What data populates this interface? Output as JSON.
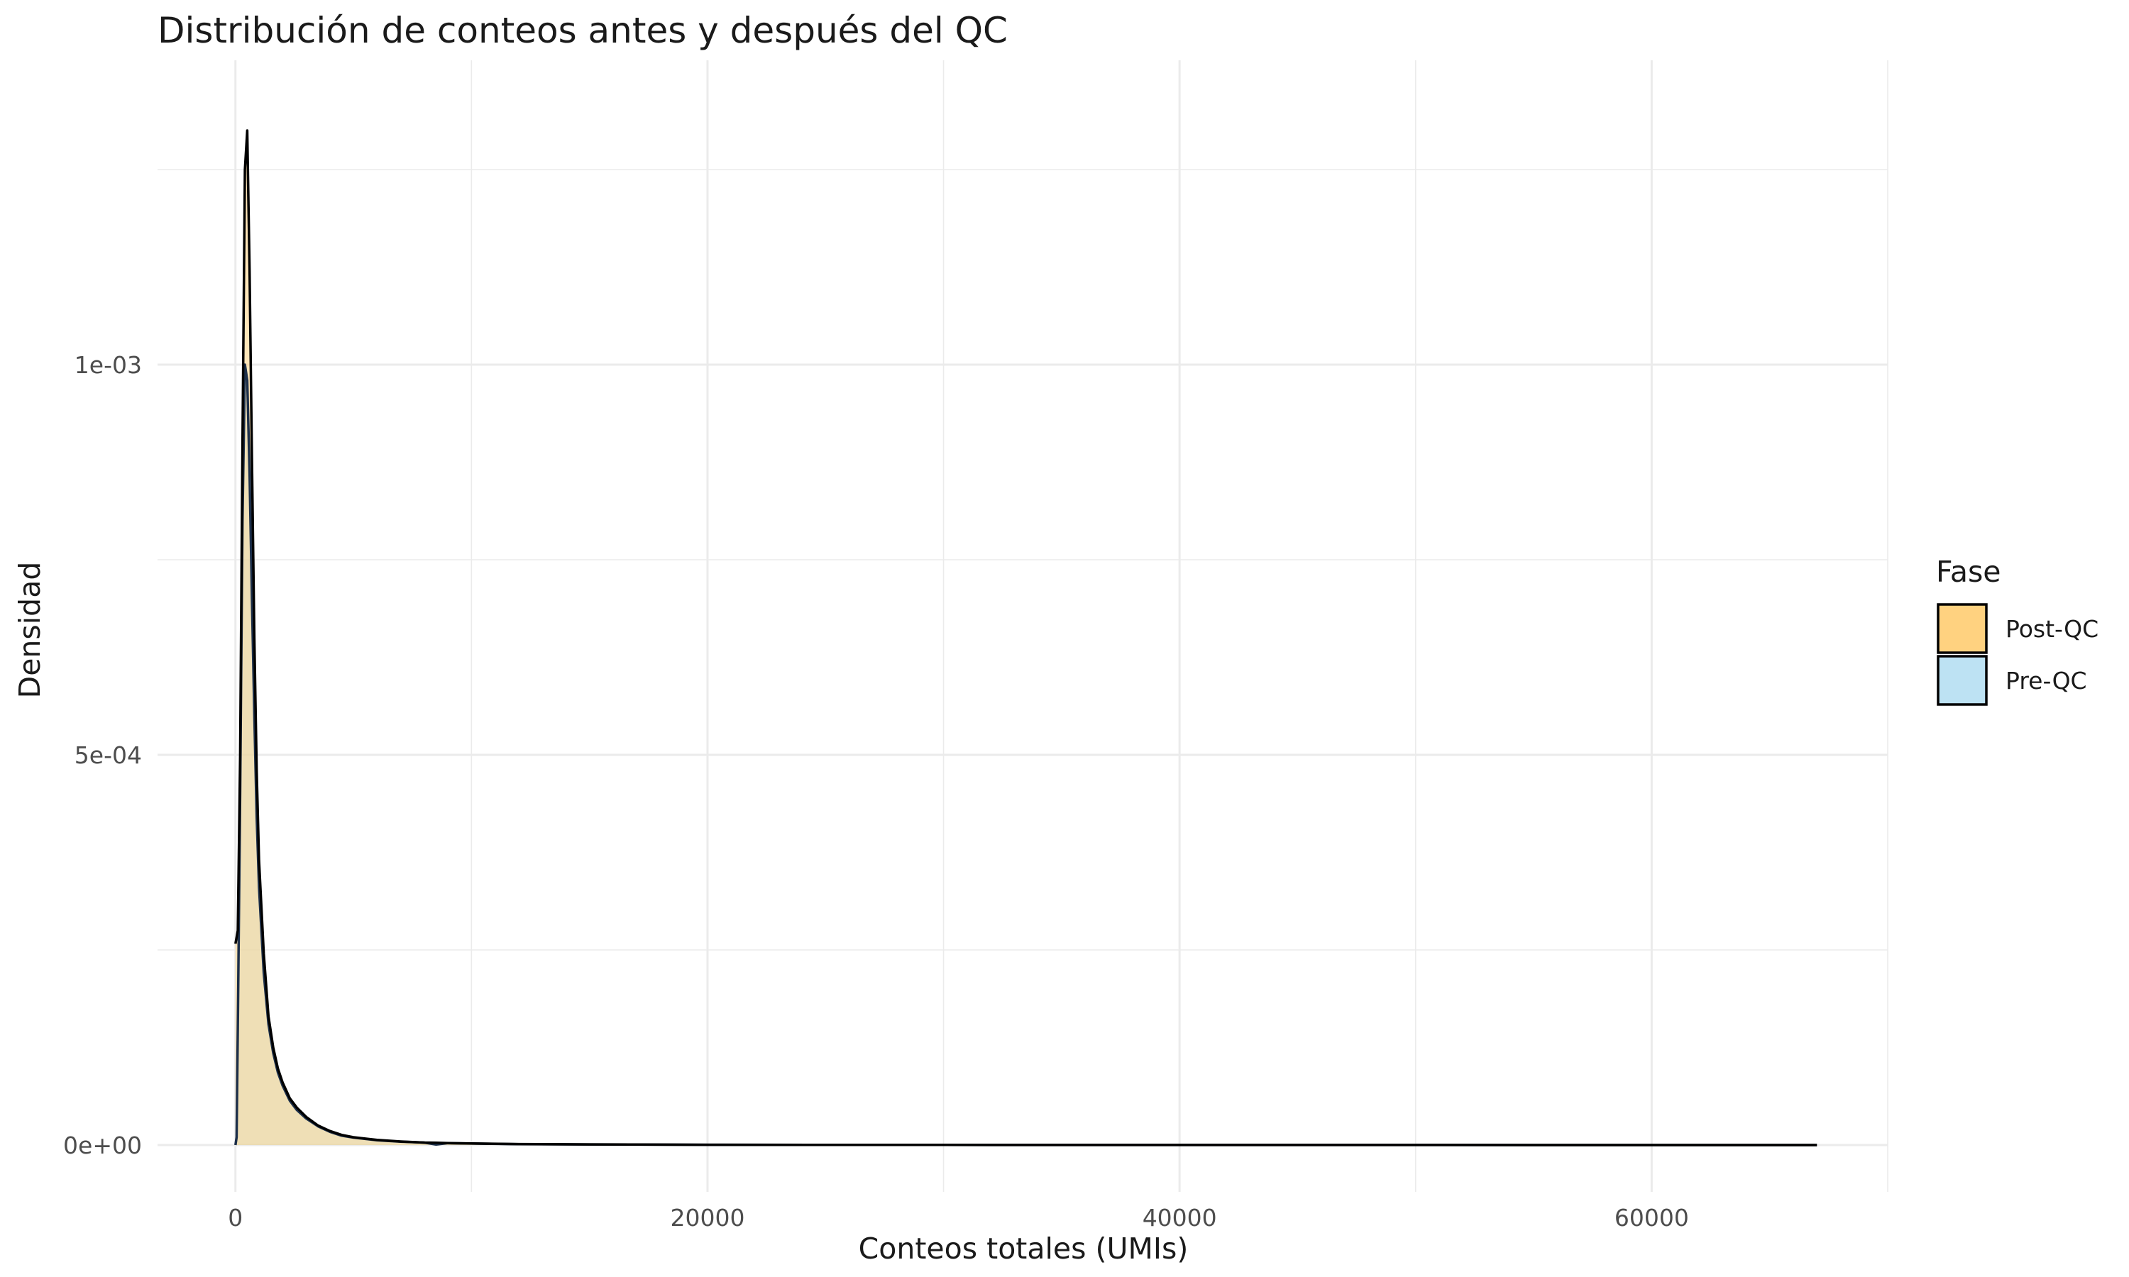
{
  "chart_data": {
    "type": "area",
    "title": "Distribución de conteos antes y después del QC",
    "xlabel": "Conteos totales (UMIs)",
    "ylabel": "Densidad",
    "xlim": [
      -3300,
      70000
    ],
    "ylim": [
      -6e-05,
      0.00139
    ],
    "x_ticks": [
      0,
      20000,
      40000,
      60000
    ],
    "x_tick_labels": [
      "0",
      "20000",
      "40000",
      "60000"
    ],
    "y_ticks": [
      0,
      0.0005,
      0.001
    ],
    "y_tick_labels": [
      "0e+00",
      "5e-04",
      "1e-03"
    ],
    "grid": true,
    "legend": {
      "title": "Fase",
      "position": "right"
    },
    "series": [
      {
        "name": "Post-QC",
        "color": "#FFD280",
        "x": [
          0,
          100,
          200,
          300,
          400,
          500,
          600,
          700,
          800,
          900,
          1000,
          1200,
          1400,
          1600,
          1800,
          2000,
          2300,
          2600,
          3000,
          3500,
          4000,
          4500,
          5000,
          6000,
          7000,
          8000,
          8500,
          9000,
          10000,
          12000,
          15000,
          20000,
          30000,
          40000,
          50000,
          60000,
          67000
        ],
        "values": [
          0.000258,
          0.000275,
          0.0005,
          0.0009,
          0.00125,
          0.0013,
          0.00112,
          0.00088,
          0.00065,
          0.00048,
          0.000365,
          0.000245,
          0.000165,
          0.000125,
          9.8e-05,
          8e-05,
          6e-05,
          4.8e-05,
          3.6e-05,
          2.5e-05,
          1.8e-05,
          1.3e-05,
          1e-05,
          6.5e-06,
          4.5e-06,
          3.2e-06,
          3e-06,
          2.5e-06,
          2e-06,
          1.3e-06,
          8e-07,
          4e-07,
          2e-07,
          1e-07,
          5e-08,
          2e-08,
          1e-08
        ]
      },
      {
        "name": "Pre-QC",
        "color": "#BDE2F3",
        "x": [
          0,
          50,
          100,
          200,
          300,
          400,
          500,
          600,
          700,
          800,
          900,
          1000,
          1200,
          1400,
          1600,
          1800,
          2000,
          2300,
          2600,
          3000,
          3500,
          4000,
          4500,
          5000,
          6000,
          7000,
          8000,
          8500,
          9000,
          10000,
          12000,
          15000,
          20000,
          30000,
          40000,
          50000,
          60000,
          67000
        ],
        "values": [
          0,
          1e-05,
          0.00015,
          0.00045,
          0.0008,
          0.001,
          0.00098,
          0.00086,
          0.0007,
          0.00055,
          0.00042,
          0.00033,
          0.00022,
          0.000155,
          0.000118,
          9.3e-05,
          7.6e-05,
          5.7e-05,
          4.5e-05,
          3.4e-05,
          2.4e-05,
          1.7e-05,
          1.2e-05,
          9.5e-06,
          6.2e-06,
          4.4e-06,
          3.2e-06,
          6e-07,
          2.5e-06,
          1.9e-06,
          1.2e-06,
          8e-07,
          4e-07,
          2e-07,
          1e-07,
          5e-08,
          2e-08,
          1e-08
        ]
      }
    ]
  }
}
